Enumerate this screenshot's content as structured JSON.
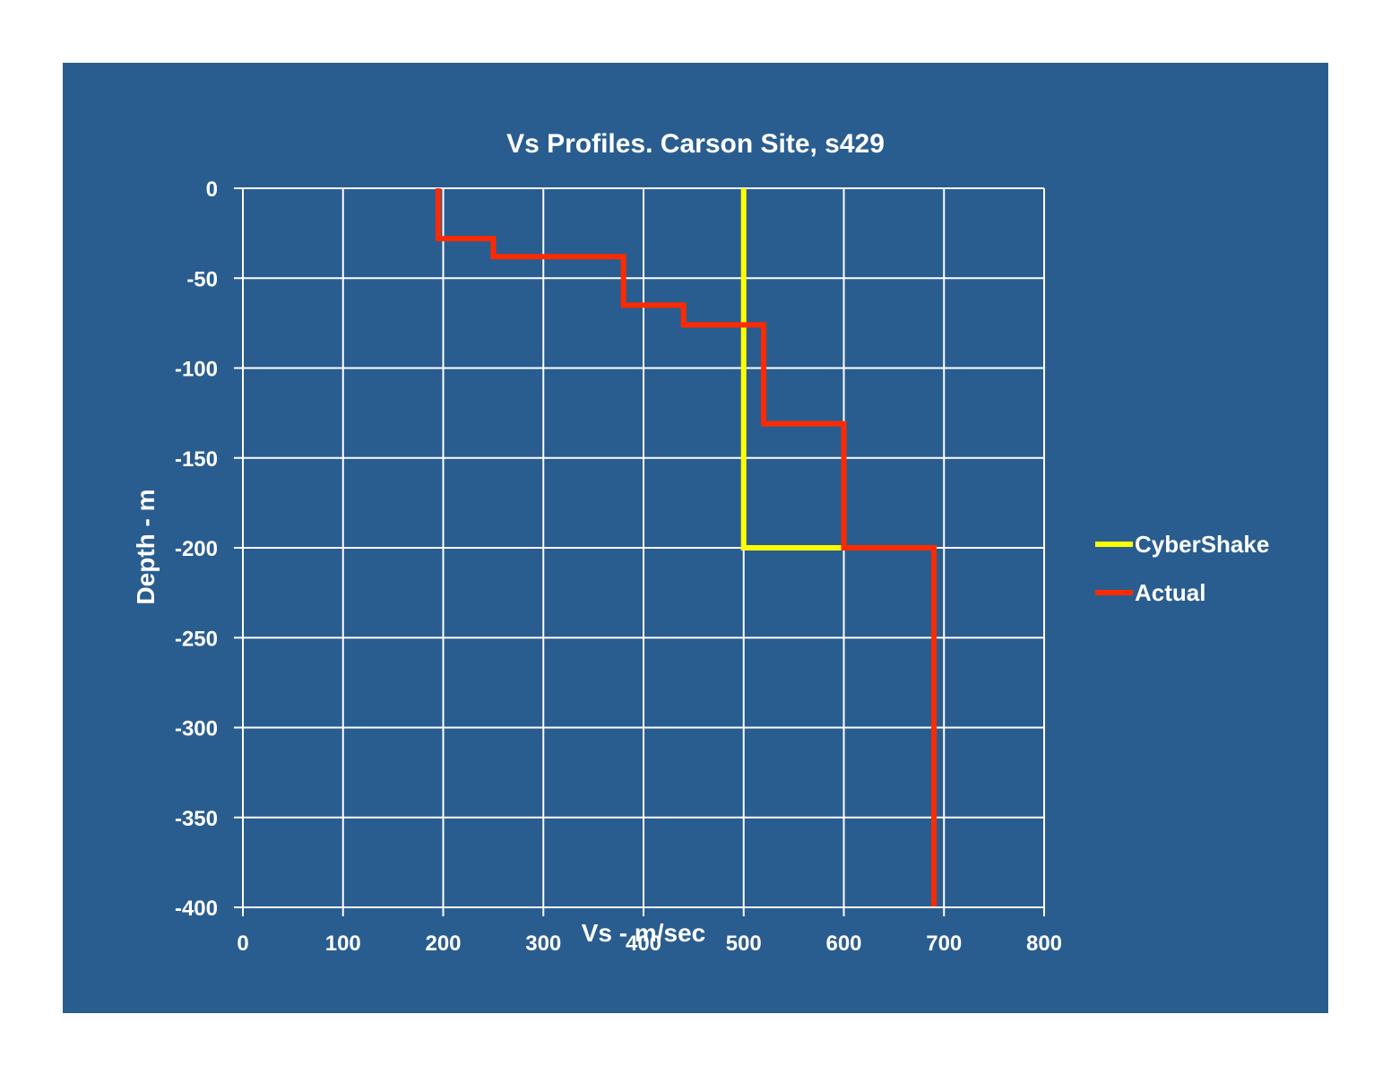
{
  "chart_data": {
    "type": "line",
    "title": "Vs Profiles. Carson Site, s429",
    "xlabel": "Vs - m/sec",
    "ylabel": "Depth - m",
    "xlim": [
      0,
      800
    ],
    "ylim": [
      -400,
      0
    ],
    "x_ticks": [
      0,
      100,
      200,
      300,
      400,
      500,
      600,
      700,
      800
    ],
    "y_ticks": [
      0,
      -50,
      -100,
      -150,
      -200,
      -250,
      -300,
      -350,
      -400
    ],
    "x_tick_labels": [
      "0",
      "100",
      "200",
      "300",
      "400",
      "500",
      "600",
      "700",
      "800"
    ],
    "y_tick_labels": [
      "0",
      "-50",
      "-100",
      "-150",
      "-200",
      "-250",
      "-300",
      "-350",
      "-400"
    ],
    "grid": true,
    "legend_position": "right",
    "background": "#2a5d8f",
    "series": [
      {
        "name": "CyberShake",
        "color": "#ffff00",
        "x": [
          500,
          500,
          600
        ],
        "y": [
          0,
          -200,
          -200
        ]
      },
      {
        "name": "Actual",
        "color": "#ff2a00",
        "x": [
          195,
          195,
          250,
          250,
          380,
          380,
          440,
          440,
          520,
          520,
          600,
          600,
          690,
          690
        ],
        "y": [
          0,
          -28,
          -28,
          -38,
          -38,
          -65,
          -65,
          -76,
          -76,
          -131,
          -131,
          -200,
          -200,
          -400
        ]
      }
    ]
  }
}
